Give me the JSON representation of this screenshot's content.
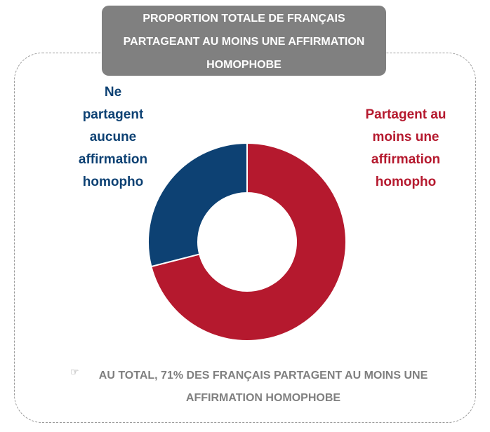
{
  "chart_data": {
    "type": "donut",
    "title": "PROPORTION TOTALE DE FRANÇAIS PARTAGEANT AU MOINS UNE AFFIRMATION HOMOPHOBE",
    "categories": [
      "Partagent au moins une affirmation homopho",
      "Ne partagent aucune affirmation homopho"
    ],
    "values": [
      71,
      29
    ],
    "colors": [
      "#b5192e",
      "#0d4173"
    ],
    "note": "AU TOTAL, 71% DES FRANÇAIS PARTAGENT AU MOINS UNE AFFIRMATION HOMOPHOBE"
  }
}
